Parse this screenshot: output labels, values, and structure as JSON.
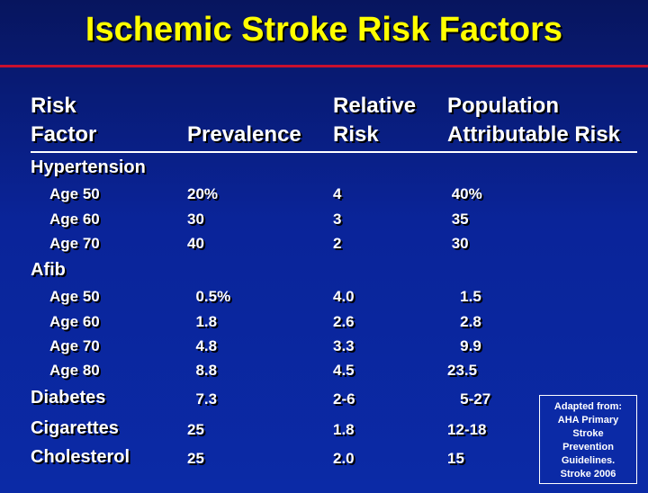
{
  "title": "Ischemic Stroke Risk Factors",
  "headers": {
    "risk_factor": [
      "Risk",
      "Factor"
    ],
    "prevalence": [
      "",
      "Prevalence"
    ],
    "relative_risk": [
      "Relative",
      "Risk"
    ],
    "par": [
      "Population",
      "Attributable Risk"
    ]
  },
  "groups": [
    {
      "label": "Hypertension",
      "rows": [
        {
          "label": "Age 50",
          "prevalence": "20%",
          "rr": "4",
          "par": " 40%"
        },
        {
          "label": "Age 60",
          "prevalence": "30",
          "rr": "3",
          "par": " 35"
        },
        {
          "label": "Age 70",
          "prevalence": "40",
          "rr": "2",
          "par": " 30"
        }
      ]
    },
    {
      "label": "Afib",
      "rows": [
        {
          "label": "Age 50",
          "prevalence": "  0.5%",
          "rr": "4.0",
          "par": "   1.5"
        },
        {
          "label": "Age 60",
          "prevalence": "  1.8",
          "rr": "2.6",
          "par": "   2.8"
        },
        {
          "label": "Age 70",
          "prevalence": "  4.8",
          "rr": "3.3",
          "par": "   9.9"
        },
        {
          "label": "Age 80",
          "prevalence": "  8.8",
          "rr": "4.5",
          "par": "23.5"
        }
      ]
    }
  ],
  "singles": [
    {
      "label": "Diabetes",
      "prevalence": "  7.3",
      "rr": "2-6",
      "par": "   5-27"
    },
    {
      "label": "Cigarettes",
      "prevalence": "25",
      "rr": "1.8",
      "par": "12-18"
    },
    {
      "label": "Cholesterol",
      "prevalence": "25",
      "rr": "2.0",
      "par": "15"
    }
  ],
  "note": [
    "Adapted from:",
    "AHA Primary",
    "Stroke",
    "Prevention",
    "Guidelines.",
    "Stroke 2006"
  ],
  "colors": {
    "background": "#0b2aa6",
    "title": "#ffff00",
    "accent_rule": "#c8102e",
    "text": "#ffffff"
  }
}
